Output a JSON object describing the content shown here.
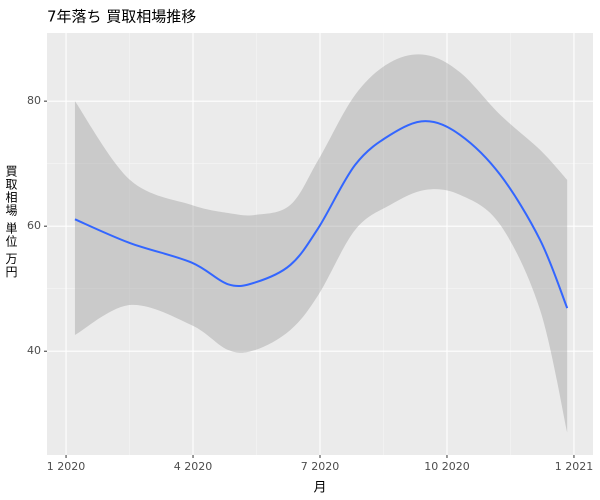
{
  "chart_data": {
    "type": "smooth",
    "title": "7年落ち 買取相場推移",
    "x_label": "月",
    "y_label": "買取相場 単位 万円",
    "x": [
      0.21,
      1.51,
      2.96,
      3.83,
      4.47,
      5.3,
      5.96,
      6.83,
      7.66,
      8.49,
      9.31,
      10.26,
      11.2,
      11.84
    ],
    "values": [
      61.1,
      57.3,
      54.2,
      50.7,
      51,
      53.8,
      59.7,
      69.8,
      74.6,
      76.8,
      74.6,
      68.2,
      57.8,
      46.9
    ],
    "lower": [
      42.6,
      47.4,
      44.2,
      40.2,
      40.2,
      43.4,
      49,
      59.4,
      63.4,
      65.8,
      65,
      60.2,
      46.6,
      27
    ],
    "upper": [
      80,
      67.4,
      63.4,
      62.1,
      61.8,
      63.4,
      70.6,
      81,
      86.2,
      87.4,
      84.6,
      77.8,
      72.2,
      67.4
    ],
    "color": "#3366ff",
    "band_color": "#999999",
    "xlim": [
      -0.45,
      12.45
    ],
    "ylim": [
      23.4,
      90.9
    ],
    "xticks": [
      {
        "value": 0,
        "label": "1 2020"
      },
      {
        "value": 3,
        "label": "4 2020"
      },
      {
        "value": 6,
        "label": "7 2020"
      },
      {
        "value": 9,
        "label": "10 2020"
      },
      {
        "value": 12,
        "label": "1 2021"
      }
    ],
    "yticks": [
      40,
      60,
      80
    ],
    "grid": true
  }
}
